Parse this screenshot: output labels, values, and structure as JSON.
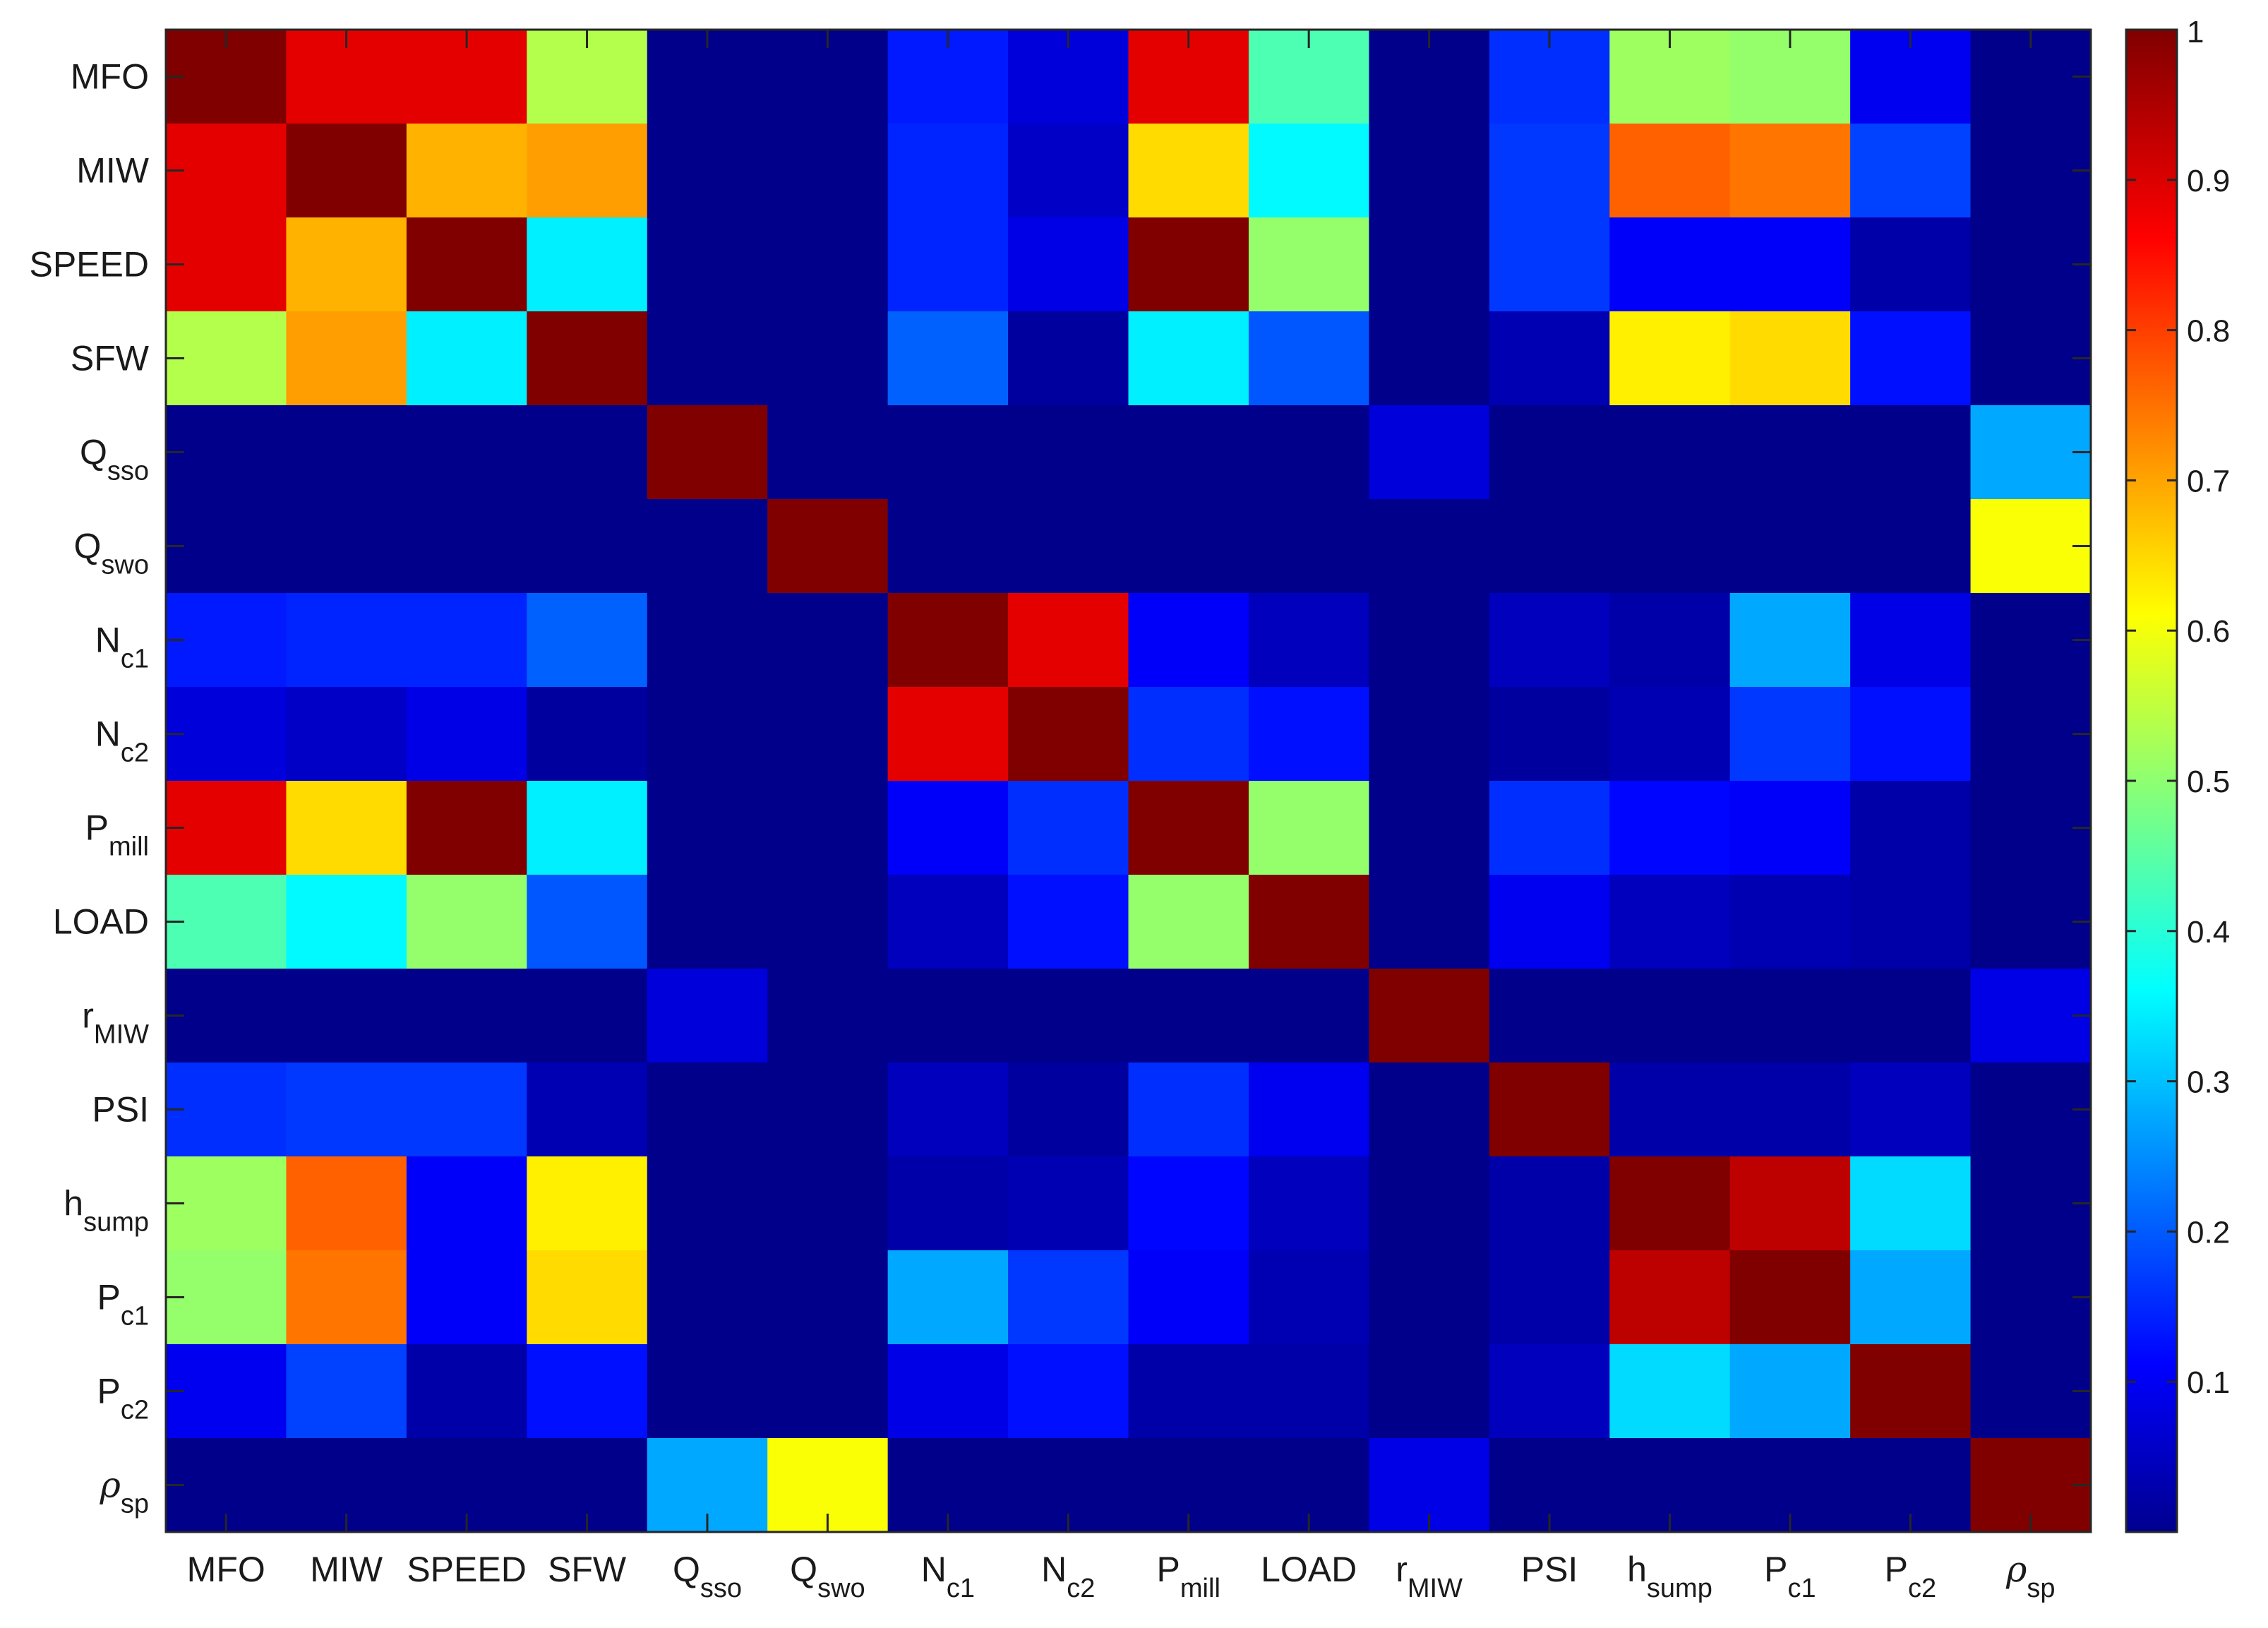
{
  "chart_data": {
    "type": "heatmap",
    "title": "",
    "xlabel": "",
    "ylabel": "",
    "labels": [
      {
        "main": "MFO",
        "sub": "",
        "greek": false
      },
      {
        "main": "MIW",
        "sub": "",
        "greek": false
      },
      {
        "main": "SPEED",
        "sub": "",
        "greek": false
      },
      {
        "main": "SFW",
        "sub": "",
        "greek": false
      },
      {
        "main": "Q",
        "sub": "sso",
        "greek": false
      },
      {
        "main": "Q",
        "sub": "swo",
        "greek": false
      },
      {
        "main": "N",
        "sub": "c1",
        "greek": false
      },
      {
        "main": "N",
        "sub": "c2",
        "greek": false
      },
      {
        "main": "P",
        "sub": "mill",
        "greek": false
      },
      {
        "main": "LOAD",
        "sub": "",
        "greek": false
      },
      {
        "main": "r",
        "sub": "MIW",
        "greek": false
      },
      {
        "main": "PSI",
        "sub": "",
        "greek": false
      },
      {
        "main": "h",
        "sub": "sump",
        "greek": false
      },
      {
        "main": "P",
        "sub": "c1",
        "greek": false
      },
      {
        "main": "P",
        "sub": "c2",
        "greek": false
      },
      {
        "main": "ρ",
        "sub": "sp",
        "greek": true
      }
    ],
    "matrix": [
      [
        1.0,
        0.9,
        0.9,
        0.55,
        0.01,
        0.01,
        0.15,
        0.09,
        0.9,
        0.45,
        0.01,
        0.17,
        0.53,
        0.52,
        0.11,
        0.01
      ],
      [
        0.9,
        1.0,
        0.7,
        0.72,
        0.01,
        0.01,
        0.16,
        0.07,
        0.66,
        0.37,
        0.01,
        0.18,
        0.78,
        0.76,
        0.19,
        0.01
      ],
      [
        0.9,
        0.7,
        1.0,
        0.36,
        0.01,
        0.01,
        0.16,
        0.1,
        1.0,
        0.52,
        0.01,
        0.18,
        0.12,
        0.12,
        0.04,
        0.01
      ],
      [
        0.55,
        0.72,
        0.36,
        1.0,
        0.01,
        0.01,
        0.22,
        0.03,
        0.36,
        0.21,
        0.01,
        0.05,
        0.64,
        0.66,
        0.14,
        0.01
      ],
      [
        0.01,
        0.01,
        0.01,
        0.01,
        1.0,
        0.01,
        0.01,
        0.01,
        0.01,
        0.01,
        0.09,
        0.01,
        0.01,
        0.01,
        0.01,
        0.29
      ],
      [
        0.01,
        0.01,
        0.01,
        0.01,
        0.01,
        1.0,
        0.01,
        0.01,
        0.01,
        0.01,
        0.01,
        0.01,
        0.01,
        0.01,
        0.01,
        0.62
      ],
      [
        0.15,
        0.16,
        0.16,
        0.22,
        0.01,
        0.01,
        1.0,
        0.9,
        0.12,
        0.06,
        0.01,
        0.06,
        0.04,
        0.29,
        0.1,
        0.01
      ],
      [
        0.09,
        0.07,
        0.1,
        0.03,
        0.01,
        0.01,
        0.9,
        1.0,
        0.17,
        0.14,
        0.01,
        0.03,
        0.05,
        0.18,
        0.14,
        0.01
      ],
      [
        0.9,
        0.66,
        1.0,
        0.36,
        0.01,
        0.01,
        0.12,
        0.17,
        1.0,
        0.52,
        0.01,
        0.17,
        0.13,
        0.12,
        0.04,
        0.01
      ],
      [
        0.45,
        0.37,
        0.52,
        0.21,
        0.01,
        0.01,
        0.06,
        0.14,
        0.52,
        1.0,
        0.01,
        0.11,
        0.06,
        0.05,
        0.04,
        0.01
      ],
      [
        0.01,
        0.01,
        0.01,
        0.01,
        0.09,
        0.01,
        0.01,
        0.01,
        0.01,
        0.01,
        1.0,
        0.01,
        0.01,
        0.01,
        0.01,
        0.1
      ],
      [
        0.17,
        0.18,
        0.18,
        0.05,
        0.01,
        0.01,
        0.06,
        0.03,
        0.17,
        0.11,
        0.01,
        1.0,
        0.04,
        0.04,
        0.06,
        0.01
      ],
      [
        0.53,
        0.78,
        0.12,
        0.64,
        0.01,
        0.01,
        0.04,
        0.05,
        0.13,
        0.06,
        0.01,
        0.04,
        1.0,
        0.94,
        0.34,
        0.01
      ],
      [
        0.52,
        0.76,
        0.12,
        0.66,
        0.01,
        0.01,
        0.29,
        0.18,
        0.12,
        0.05,
        0.01,
        0.04,
        0.94,
        1.0,
        0.29,
        0.01
      ],
      [
        0.11,
        0.19,
        0.04,
        0.14,
        0.01,
        0.01,
        0.1,
        0.14,
        0.04,
        0.04,
        0.01,
        0.06,
        0.34,
        0.29,
        1.0,
        0.01
      ],
      [
        0.01,
        0.01,
        0.01,
        0.01,
        0.29,
        0.62,
        0.01,
        0.01,
        0.01,
        0.01,
        0.1,
        0.01,
        0.01,
        0.01,
        0.01,
        1.0
      ]
    ],
    "colormap": "jet",
    "clim": [
      0.0,
      1.0
    ],
    "colorbar": {
      "ticks": [
        0.1,
        0.2,
        0.3,
        0.4,
        0.5,
        0.6,
        0.7,
        0.8,
        0.9,
        1
      ],
      "tick_labels": [
        "0.1",
        "0.2",
        "0.3",
        "0.4",
        "0.5",
        "0.6",
        "0.7",
        "0.8",
        "0.9",
        "1"
      ],
      "placement": "right"
    },
    "grid": false
  }
}
